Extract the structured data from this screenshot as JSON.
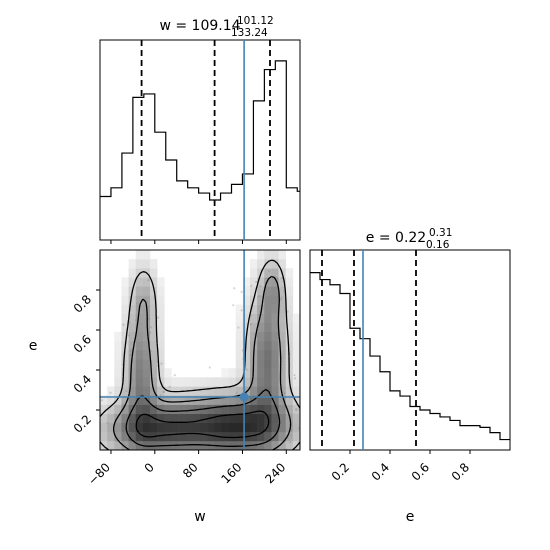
{
  "chart_data": {
    "type": "corner",
    "parameters": [
      "w",
      "e"
    ],
    "truth": {
      "w": 163,
      "e": 0.265
    },
    "panels": [
      {
        "id": "w-hist",
        "type": "histogram",
        "title": {
          "param": "w",
          "median": "109.14",
          "plus": "101.12",
          "minus": "133.24"
        },
        "xlim": [
          -100,
          265
        ],
        "ylim": [
          0,
          1.15
        ],
        "bins": [
          {
            "x0": -100,
            "x1": -80,
            "h": 0.25
          },
          {
            "x0": -80,
            "x1": -60,
            "h": 0.3
          },
          {
            "x0": -60,
            "x1": -40,
            "h": 0.5
          },
          {
            "x0": -40,
            "x1": -20,
            "h": 0.82
          },
          {
            "x0": -20,
            "x1": 0,
            "h": 0.84
          },
          {
            "x0": 0,
            "x1": 20,
            "h": 0.62
          },
          {
            "x0": 20,
            "x1": 40,
            "h": 0.46
          },
          {
            "x0": 40,
            "x1": 60,
            "h": 0.34
          },
          {
            "x0": 60,
            "x1": 80,
            "h": 0.3
          },
          {
            "x0": 80,
            "x1": 100,
            "h": 0.27
          },
          {
            "x0": 100,
            "x1": 120,
            "h": 0.23
          },
          {
            "x0": 120,
            "x1": 140,
            "h": 0.27
          },
          {
            "x0": 140,
            "x1": 160,
            "h": 0.32
          },
          {
            "x0": 160,
            "x1": 180,
            "h": 0.38
          },
          {
            "x0": 180,
            "x1": 200,
            "h": 0.8
          },
          {
            "x0": 200,
            "x1": 220,
            "h": 0.98
          },
          {
            "x0": 220,
            "x1": 240,
            "h": 1.03
          },
          {
            "x0": 240,
            "x1": 260,
            "h": 0.3
          },
          {
            "x0": 260,
            "x1": 265,
            "h": 0.28
          }
        ],
        "quantiles": [
          -24.1,
          109.14,
          210.26
        ]
      },
      {
        "id": "e-hist",
        "type": "histogram",
        "title": {
          "param": "e",
          "median": "0.22",
          "plus": "0.31",
          "minus": "0.16"
        },
        "xlim": [
          0,
          1
        ],
        "ylim": [
          0,
          1.15
        ],
        "bins": [
          {
            "x0": 0,
            "x1": 0.05,
            "h": 1.02
          },
          {
            "x0": 0.05,
            "x1": 0.1,
            "h": 0.98
          },
          {
            "x0": 0.1,
            "x1": 0.15,
            "h": 0.95
          },
          {
            "x0": 0.15,
            "x1": 0.2,
            "h": 0.9
          },
          {
            "x0": 0.2,
            "x1": 0.25,
            "h": 0.7
          },
          {
            "x0": 0.25,
            "x1": 0.3,
            "h": 0.64
          },
          {
            "x0": 0.3,
            "x1": 0.35,
            "h": 0.54
          },
          {
            "x0": 0.35,
            "x1": 0.4,
            "h": 0.45
          },
          {
            "x0": 0.4,
            "x1": 0.45,
            "h": 0.34
          },
          {
            "x0": 0.45,
            "x1": 0.5,
            "h": 0.31
          },
          {
            "x0": 0.5,
            "x1": 0.55,
            "h": 0.25
          },
          {
            "x0": 0.55,
            "x1": 0.6,
            "h": 0.23
          },
          {
            "x0": 0.6,
            "x1": 0.65,
            "h": 0.21
          },
          {
            "x0": 0.65,
            "x1": 0.7,
            "h": 0.19
          },
          {
            "x0": 0.7,
            "x1": 0.75,
            "h": 0.17
          },
          {
            "x0": 0.75,
            "x1": 0.8,
            "h": 0.14
          },
          {
            "x0": 0.8,
            "x1": 0.85,
            "h": 0.14
          },
          {
            "x0": 0.85,
            "x1": 0.9,
            "h": 0.13
          },
          {
            "x0": 0.9,
            "x1": 0.95,
            "h": 0.1
          },
          {
            "x0": 0.95,
            "x1": 1.0,
            "h": 0.06
          }
        ],
        "quantiles": [
          0.06,
          0.22,
          0.53
        ]
      },
      {
        "id": "w-e-2d",
        "type": "density_contour",
        "xlim": [
          -100,
          265
        ],
        "ylim": [
          0,
          1
        ],
        "blobs": [
          {
            "cx": -25,
            "cy": 0.38,
            "sx": 20,
            "sy": 0.2,
            "w": 0.8
          },
          {
            "cx": -20,
            "cy": 0.75,
            "sx": 16,
            "sy": 0.12,
            "w": 0.4
          },
          {
            "cx": 205,
            "cy": 0.45,
            "sx": 24,
            "sy": 0.22,
            "w": 0.9
          },
          {
            "cx": 215,
            "cy": 0.8,
            "sx": 14,
            "sy": 0.1,
            "w": 0.5
          },
          {
            "cx": 160,
            "cy": 0.12,
            "sx": 60,
            "sy": 0.1,
            "w": 1.0
          },
          {
            "cx": 0,
            "cy": 0.1,
            "sx": 60,
            "sy": 0.09,
            "w": 0.9
          },
          {
            "cx": 90,
            "cy": 0.12,
            "sx": 90,
            "sy": 0.1,
            "w": 0.6
          }
        ],
        "contour_levels": [
          0.15,
          0.35,
          0.6,
          0.85
        ]
      }
    ],
    "x_tick_labels": {
      "w": [
        "−80",
        "0",
        "80",
        "160",
        "240"
      ],
      "e": [
        "0.2",
        "0.4",
        "0.6",
        "0.8"
      ]
    },
    "y_tick_labels": {
      "e": [
        "0.2",
        "0.4",
        "0.6",
        "0.8"
      ]
    },
    "xlabels": [
      "w",
      "e"
    ],
    "ylabel": "e",
    "colors": {
      "line": "#000000",
      "truth": "#4682b4",
      "quantile": "#000000"
    }
  }
}
